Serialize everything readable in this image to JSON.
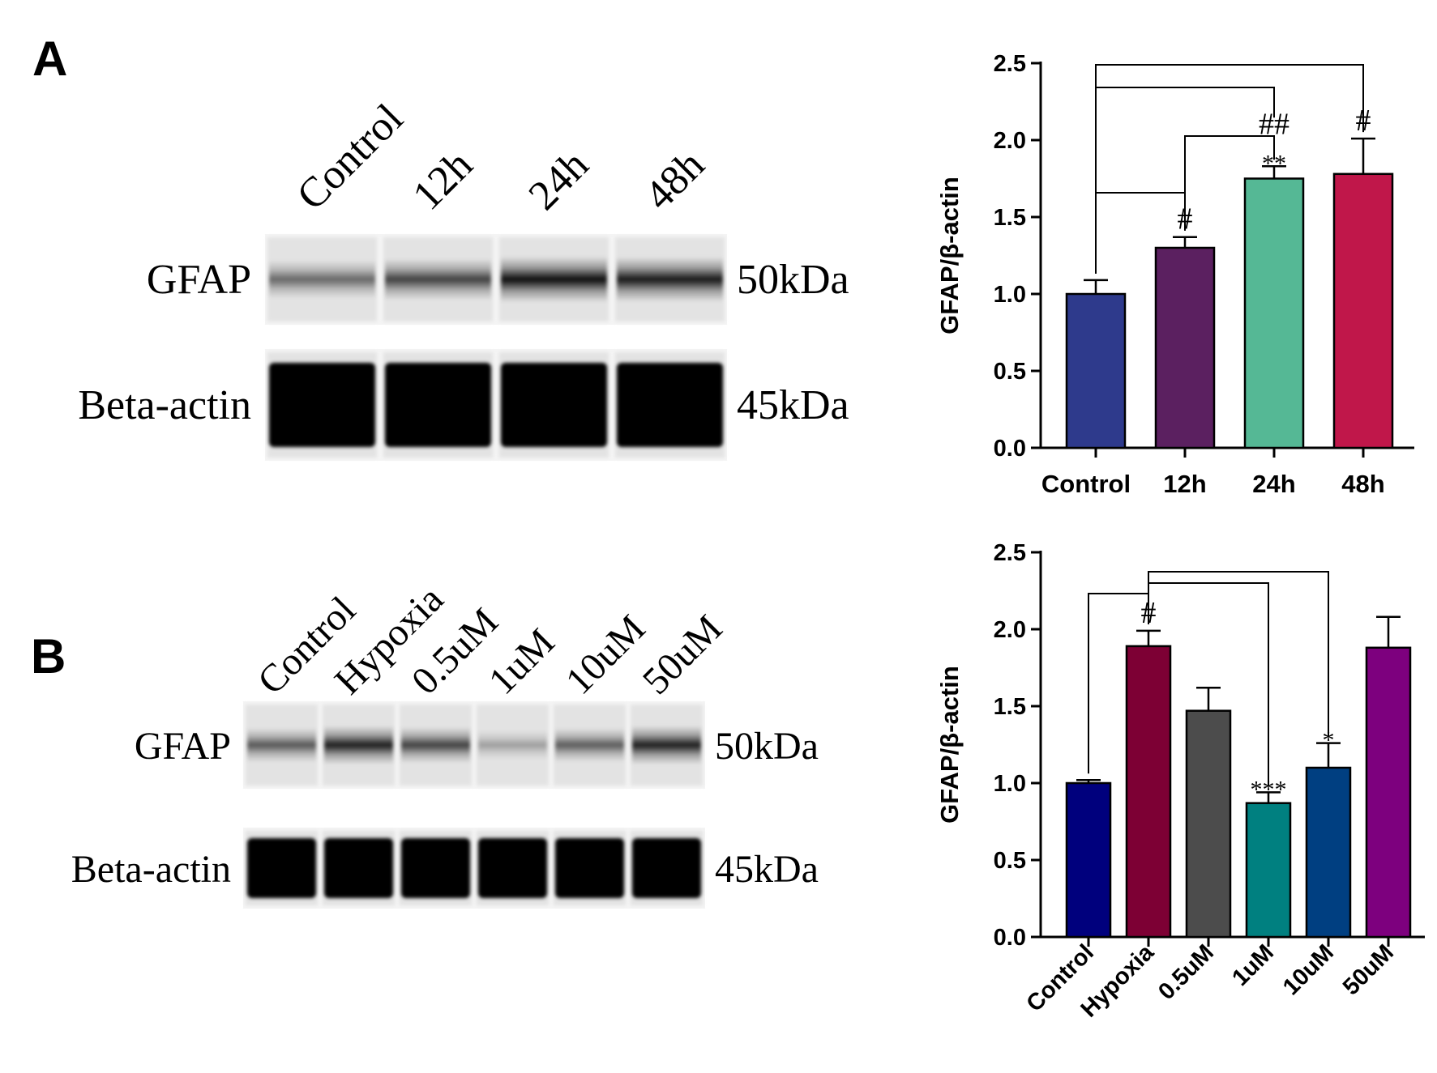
{
  "panels": [
    {
      "letter": "A",
      "blot": {
        "lanes": [
          "Control",
          "12h",
          "24h",
          "48h"
        ],
        "rows": [
          {
            "protein": "GFAP",
            "size": "50kDa",
            "intensity": [
              0.55,
              0.72,
              0.95,
              0.9
            ]
          },
          {
            "protein": "Beta-actin",
            "size": "45kDa",
            "intensity": [
              1,
              1,
              1,
              1
            ]
          }
        ]
      }
    },
    {
      "letter": "B",
      "blot": {
        "lanes": [
          "Control",
          "Hypoxia",
          "0.5uM",
          "1uM",
          "10uM",
          "50uM"
        ],
        "rows": [
          {
            "protein": "GFAP",
            "size": "50kDa",
            "intensity": [
              0.62,
              0.88,
              0.72,
              0.3,
              0.6,
              0.88
            ]
          },
          {
            "protein": "Beta-actin",
            "size": "45kDa",
            "intensity": [
              1,
              1,
              1,
              1,
              1,
              1
            ]
          }
        ]
      }
    }
  ],
  "chart_data": [
    {
      "type": "bar",
      "categories": [
        "Control",
        "12h",
        "24h",
        "48h"
      ],
      "values": [
        1.0,
        1.3,
        1.75,
        1.78
      ],
      "errors": [
        0.09,
        0.07,
        0.08,
        0.23
      ],
      "colors": [
        "#2e3a8c",
        "#5b2060",
        "#55b895",
        "#c0174a"
      ],
      "xlabel": "",
      "ylabel": "GFAP/β-actin",
      "ylim": [
        0,
        2.5
      ],
      "yticks": [
        "0.0",
        "0.5",
        "1.0",
        "1.5",
        "2.0",
        "2.5"
      ],
      "rotate_xlabels": false,
      "marks": [
        {
          "index": 1,
          "text": "#"
        },
        {
          "index": 2,
          "text": "##"
        },
        {
          "index": 2,
          "text": "**"
        },
        {
          "index": 3,
          "text": "#"
        }
      ],
      "brackets": [
        {
          "from": 0,
          "to": 1
        },
        {
          "from": 1,
          "to": 2
        },
        {
          "from": 0,
          "to": 2
        },
        {
          "from": 0,
          "to": 3
        }
      ]
    },
    {
      "type": "bar",
      "categories": [
        "Control",
        "Hypoxia",
        "0.5uM",
        "1uM",
        "10uM",
        "50uM"
      ],
      "values": [
        1.0,
        1.89,
        1.47,
        0.87,
        1.1,
        1.88
      ],
      "errors": [
        0.02,
        0.1,
        0.15,
        0.07,
        0.16,
        0.2
      ],
      "colors": [
        "#00007d",
        "#7d0034",
        "#4c4c4c",
        "#008080",
        "#003f81",
        "#7d007e"
      ],
      "xlabel": "",
      "ylabel": "GFAP/β-actin",
      "ylim": [
        0,
        2.5
      ],
      "yticks": [
        "0.0",
        "0.5",
        "1.0",
        "1.5",
        "2.0",
        "2.5"
      ],
      "rotate_xlabels": true,
      "marks": [
        {
          "index": 1,
          "text": "#"
        },
        {
          "index": 3,
          "text": "***"
        },
        {
          "index": 4,
          "text": "*"
        }
      ],
      "brackets": [
        {
          "from": 0,
          "to": 1
        },
        {
          "from": 1,
          "to": 3
        },
        {
          "from": 1,
          "to": 4
        }
      ]
    }
  ]
}
